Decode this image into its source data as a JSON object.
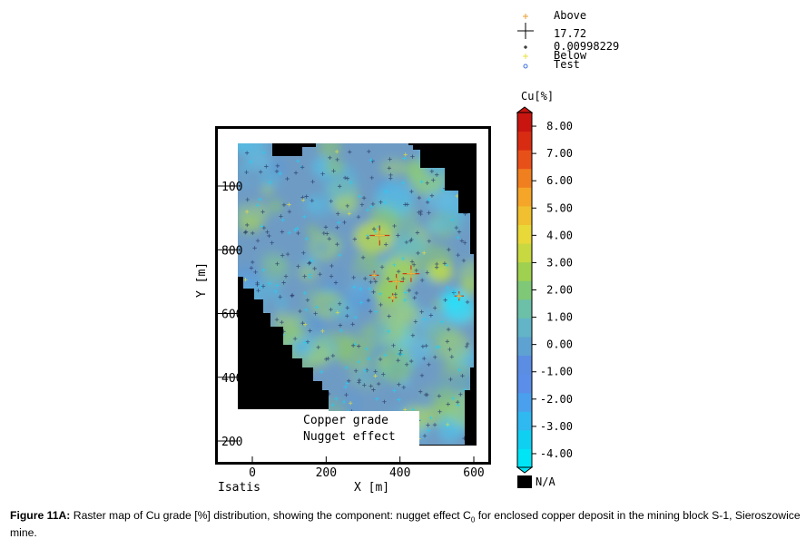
{
  "chart_data": {
    "type": "heatmap",
    "title": "",
    "xlabel": "X [m]",
    "ylabel": "Y [m]",
    "x_ticks": [
      "0",
      "200",
      "400",
      "600"
    ],
    "y_ticks": [
      "200",
      "400",
      "600",
      "800",
      "100"
    ],
    "xlim": [
      -40,
      640
    ],
    "ylim": [
      130,
      1180
    ],
    "software_label": "Isatis",
    "map_annotations": [
      "Copper grade",
      "Nugget effect"
    ],
    "colorbar": {
      "title": "Cu[%]",
      "tick_labels": [
        "8.00",
        "7.00",
        "6.00",
        "5.00",
        "4.00",
        "3.00",
        "2.00",
        "1.00",
        "0.00",
        "-1.00",
        "-2.00",
        "-3.00",
        "-4.00"
      ],
      "tick_values": [
        8,
        7,
        6,
        5,
        4,
        3,
        2,
        1,
        0,
        -1,
        -2,
        -3,
        -4
      ],
      "range": [
        -4.5,
        8.5
      ],
      "colors": [
        "#00e5f5",
        "#10d0f2",
        "#30b8f0",
        "#4aa0ec",
        "#5a8ee8",
        "#5b8de2",
        "#5ea2d2",
        "#62b4c6",
        "#6cc0a8",
        "#7ec878",
        "#a0d050",
        "#c8d840",
        "#e8d838",
        "#f0c030",
        "#f5a528",
        "#f07f20",
        "#e8501a",
        "#d82c12",
        "#c81510"
      ],
      "na_label": "N/A",
      "na_color": "#000000"
    },
    "legend": {
      "entries": [
        {
          "label": "Above",
          "symbol": "plus",
          "color": "#e8a030"
        },
        {
          "label": "17.72",
          "symbol": "plus-large",
          "color": "#000000"
        },
        {
          "label": "0.00998229",
          "symbol": "plus-small",
          "color": "#000000"
        },
        {
          "label": "Below",
          "symbol": "plus",
          "color": "#e8e040"
        },
        {
          "label": "Test",
          "symbol": "circle",
          "color": "#4070e0"
        }
      ]
    },
    "grid": false,
    "high_grade_points": [
      {
        "x": 345,
        "y": 845,
        "cu": 17.72
      },
      {
        "x": 390,
        "y": 700,
        "cu": 12.0
      },
      {
        "x": 430,
        "y": 725,
        "cu": 14.0
      },
      {
        "x": 330,
        "y": 720,
        "cu": 5.0
      },
      {
        "x": 380,
        "y": 650,
        "cu": 4.0
      },
      {
        "x": 560,
        "y": 655,
        "cu": 5.0
      }
    ]
  },
  "caption": {
    "label": "Figure 11A:",
    "text_before_sub": " Raster map of Cu grade [%] distribution, showing the component: nugget effect C",
    "subscript": "0",
    "text_after_sub": " for enclosed copper deposit in the mining block S-1, Sieroszowice mine."
  }
}
